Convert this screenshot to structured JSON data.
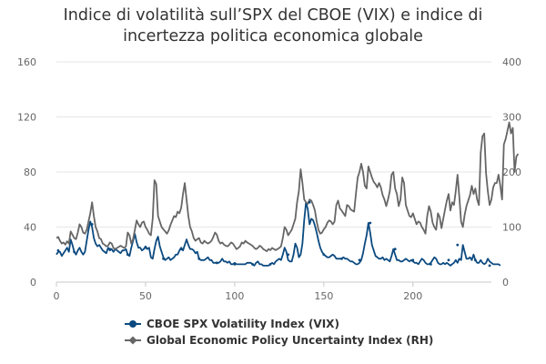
{
  "chart_data": {
    "type": "line",
    "title_line1": "Indice di volatilità sull’SPX del CBOE (VIX) e indice di",
    "title_line2": "incertezza politica economica globale",
    "x_ticks": [
      0,
      50,
      100,
      150,
      200
    ],
    "xlim": [
      0,
      244
    ],
    "ylim_left": [
      0,
      160
    ],
    "y_ticks_left": [
      0,
      40,
      80,
      120,
      160
    ],
    "ylim_right": [
      0,
      400
    ],
    "y_ticks_right": [
      0,
      100,
      200,
      300,
      400
    ],
    "grid": true,
    "legend_position": "bottom",
    "series": [
      {
        "name": "CBOE SPX Volatility Index (VIX)",
        "axis": "left",
        "color": "#0b4a80",
        "marker": "circle",
        "values": [
          20,
          22,
          22,
          19,
          21,
          23,
          25,
          22,
          31,
          27,
          22,
          20,
          23,
          25,
          22,
          20,
          22,
          30,
          38,
          44,
          40,
          32,
          28,
          26,
          27,
          25,
          23,
          22,
          21,
          25,
          23,
          24,
          22,
          24,
          23,
          22,
          21,
          23,
          23,
          24,
          20,
          19,
          25,
          30,
          35,
          29,
          25,
          25,
          23,
          24,
          26,
          24,
          25,
          18,
          17,
          24,
          30,
          33,
          26,
          22,
          18,
          16,
          17,
          18,
          16,
          17,
          18,
          20,
          20,
          23,
          25,
          23,
          27,
          31,
          27,
          24,
          24,
          23,
          21,
          22,
          17,
          16,
          16,
          16,
          17,
          18,
          16,
          16,
          14,
          14,
          14,
          14,
          15,
          17,
          15,
          15,
          14,
          15,
          13,
          13,
          14,
          13,
          13,
          13,
          13,
          13,
          13,
          14,
          14,
          14,
          13,
          12,
          14,
          15,
          13,
          13,
          12,
          12,
          12,
          12,
          13,
          14,
          13,
          15,
          16,
          17,
          16,
          20,
          25,
          22,
          16,
          15,
          15,
          20,
          28,
          25,
          18,
          20,
          28,
          45,
          58,
          53,
          42,
          46,
          45,
          41,
          36,
          30,
          25,
          22,
          20,
          19,
          18,
          18,
          19,
          20,
          19,
          17,
          17,
          17,
          17,
          18,
          17,
          17,
          16,
          15,
          15,
          14,
          13,
          13,
          14,
          16,
          21,
          28,
          34,
          43,
          36,
          27,
          23,
          19,
          18,
          17,
          17,
          18,
          16,
          17,
          16,
          15,
          19,
          24,
          20,
          16,
          16,
          15,
          15,
          16,
          17,
          16,
          15,
          16,
          15,
          14,
          14,
          13,
          15,
          17,
          16,
          14,
          13,
          13,
          14,
          16,
          18,
          17,
          14,
          13,
          13,
          14,
          13,
          14,
          13,
          12,
          13,
          14,
          16,
          14,
          17,
          16,
          27,
          22,
          17,
          17,
          18,
          16,
          20,
          16,
          14,
          14,
          16,
          14,
          13,
          14,
          17,
          15,
          14,
          13,
          13,
          13,
          13,
          12
        ],
        "points": [
          {
            "x": 1,
            "y": 23
          },
          {
            "x": 10,
            "y": 22
          },
          {
            "x": 20,
            "y": 42
          },
          {
            "x": 30,
            "y": 24
          },
          {
            "x": 40,
            "y": 20
          },
          {
            "x": 50,
            "y": 25
          },
          {
            "x": 60,
            "y": 17
          },
          {
            "x": 70,
            "y": 24
          },
          {
            "x": 80,
            "y": 17
          },
          {
            "x": 90,
            "y": 14
          },
          {
            "x": 100,
            "y": 13
          },
          {
            "x": 110,
            "y": 13
          },
          {
            "x": 120,
            "y": 13
          },
          {
            "x": 130,
            "y": 20
          },
          {
            "x": 142,
            "y": 58
          },
          {
            "x": 150,
            "y": 20
          },
          {
            "x": 160,
            "y": 17
          },
          {
            "x": 170,
            "y": 16
          },
          {
            "x": 176,
            "y": 43
          },
          {
            "x": 190,
            "y": 24
          },
          {
            "x": 200,
            "y": 16
          },
          {
            "x": 210,
            "y": 13
          },
          {
            "x": 220,
            "y": 16
          },
          {
            "x": 225,
            "y": 27
          },
          {
            "x": 235,
            "y": 16
          },
          {
            "x": 243,
            "y": 12
          }
        ]
      },
      {
        "name": "Global Economic Policy Uncertainty Index (RH)",
        "axis": "right",
        "color": "#666666",
        "marker": "diamond",
        "values": [
          80,
          82,
          75,
          70,
          72,
          68,
          74,
          70,
          92,
          86,
          80,
          78,
          90,
          105,
          100,
          90,
          88,
          95,
          110,
          125,
          145,
          120,
          100,
          92,
          80,
          78,
          70,
          68,
          65,
          66,
          72,
          70,
          62,
          60,
          62,
          64,
          66,
          64,
          62,
          65,
          90,
          85,
          70,
          78,
          95,
          112,
          105,
          100,
          108,
          110,
          100,
          95,
          88,
          85,
          115,
          185,
          178,
          120,
          110,
          100,
          96,
          92,
          88,
          94,
          104,
          112,
          120,
          118,
          128,
          125,
          135,
          160,
          180,
          150,
          120,
          100,
          92,
          80,
          75,
          78,
          80,
          72,
          70,
          75,
          72,
          70,
          72,
          75,
          82,
          90,
          86,
          75,
          70,
          72,
          68,
          66,
          65,
          68,
          72,
          70,
          65,
          60,
          62,
          65,
          72,
          70,
          75,
          72,
          70,
          68,
          66,
          62,
          60,
          62,
          66,
          64,
          60,
          58,
          56,
          60,
          58,
          62,
          60,
          58,
          60,
          62,
          65,
          80,
          100,
          95,
          85,
          90,
          95,
          105,
          115,
          145,
          165,
          205,
          180,
          150,
          145,
          142,
          150,
          148,
          140,
          130,
          110,
          95,
          88,
          90,
          96,
          100,
          108,
          112,
          110,
          105,
          110,
          140,
          148,
          134,
          130,
          125,
          120,
          140,
          138,
          132,
          130,
          128,
          160,
          190,
          200,
          215,
          200,
          175,
          170,
          210,
          200,
          190,
          182,
          178,
          172,
          180,
          172,
          158,
          150,
          138,
          150,
          165,
          195,
          200,
          170,
          160,
          138,
          150,
          190,
          180,
          140,
          130,
          120,
          118,
          125,
          115,
          105,
          110,
          108,
          100,
          95,
          88,
          120,
          138,
          128,
          108,
          100,
          95,
          125,
          118,
          98,
          115,
          132,
          148,
          160,
          130,
          145,
          140,
          165,
          195,
          155,
          110,
          100,
          122,
          138,
          148,
          158,
          175,
          160,
          170,
          150,
          140,
          235,
          265,
          270,
          198,
          165,
          140,
          150,
          172,
          180,
          180,
          195,
          175,
          150,
          250,
          260,
          275,
          290,
          270,
          280,
          200,
          228,
          233
        ]
      }
    ]
  },
  "legend": {
    "items": [
      {
        "label": "CBOE SPX Volatility Index (VIX)"
      },
      {
        "label": "Global Economic Policy Uncertainty Index (RH)"
      }
    ]
  }
}
